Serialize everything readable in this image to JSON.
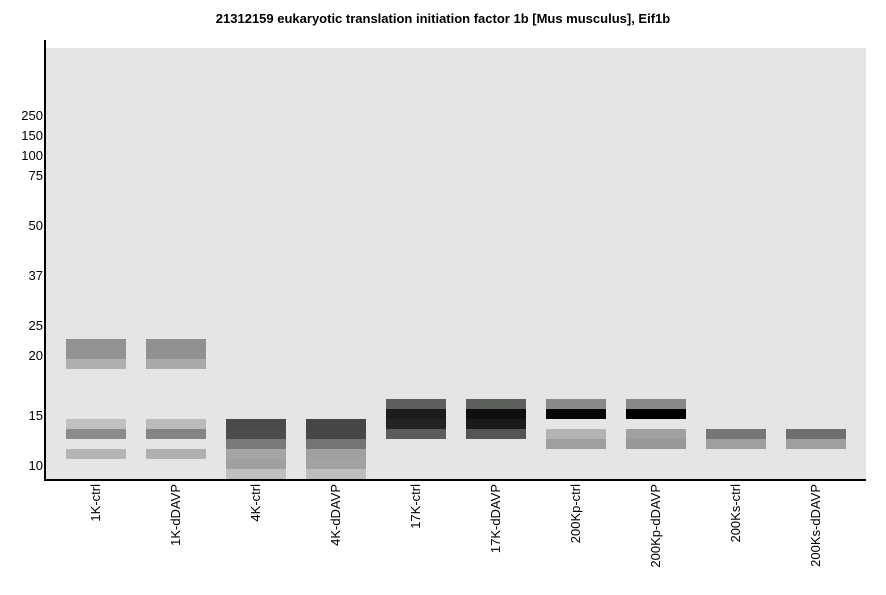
{
  "chart_data": {
    "type": "heatmap",
    "subtype": "western-blot-gel",
    "title": "21312159 eukaryotic translation initiation factor 1b [Mus musculus], Eif1b",
    "ylabel": "",
    "xlabel": "",
    "background_color": "#e4e5e4",
    "y_ticks": [
      {
        "label": "250",
        "kda": 250
      },
      {
        "label": "150",
        "kda": 150
      },
      {
        "label": "100",
        "kda": 100
      },
      {
        "label": "75",
        "kda": 75
      },
      {
        "label": "50",
        "kda": 50
      },
      {
        "label": "37",
        "kda": 37
      },
      {
        "label": "25",
        "kda": 25
      },
      {
        "label": "20",
        "kda": 20
      },
      {
        "label": "15",
        "kda": 15
      },
      {
        "label": "10",
        "kda": 10
      }
    ],
    "lanes": [
      {
        "label": "1K-ctrl",
        "bands": [
          {
            "row": 0,
            "color": "#919291"
          },
          {
            "row": 1,
            "color": "#919291"
          },
          {
            "row": 2,
            "color": "#aeafae"
          },
          {
            "row": 8,
            "color": "#c0c0c0"
          },
          {
            "row": 9,
            "color": "#8a8b8a"
          },
          {
            "row": 11,
            "color": "#b4b4b4"
          }
        ]
      },
      {
        "label": "1K-dDAVP",
        "bands": [
          {
            "row": 0,
            "color": "#909190"
          },
          {
            "row": 1,
            "color": "#909190"
          },
          {
            "row": 2,
            "color": "#a9aaa9"
          },
          {
            "row": 8,
            "color": "#bbbbbb"
          },
          {
            "row": 9,
            "color": "#838483"
          },
          {
            "row": 11,
            "color": "#b0b0b0"
          }
        ]
      },
      {
        "label": "4K-ctrl",
        "bands": [
          {
            "row": 8,
            "color": "#4a4a4a"
          },
          {
            "row": 9,
            "color": "#4c4c4c"
          },
          {
            "row": 10,
            "color": "#7a7a7a"
          },
          {
            "row": 11,
            "color": "#a5a5a5"
          },
          {
            "row": 12,
            "color": "#a0a0a0"
          },
          {
            "row": 13,
            "color": "#c0c0c0"
          }
        ]
      },
      {
        "label": "4K-dDAVP",
        "bands": [
          {
            "row": 8,
            "color": "#454645"
          },
          {
            "row": 9,
            "color": "#454645"
          },
          {
            "row": 10,
            "color": "#737473"
          },
          {
            "row": 11,
            "color": "#a0a0a0"
          },
          {
            "row": 12,
            "color": "#a2a2a2"
          },
          {
            "row": 13,
            "color": "#bebebe"
          }
        ]
      },
      {
        "label": "17K-ctrl",
        "bands": [
          {
            "row": 6,
            "color": "#5d5e5d"
          },
          {
            "row": 7,
            "color": "#1b1c1b"
          },
          {
            "row": 8,
            "color": "#232323"
          },
          {
            "row": 9,
            "color": "#5a5b5a"
          }
        ]
      },
      {
        "label": "17K-dDAVP",
        "bands": [
          {
            "row": 6,
            "color": "#5d5f5d"
          },
          {
            "row": 7,
            "color": "#0e0f0e"
          },
          {
            "row": 8,
            "color": "#1a1a1a"
          },
          {
            "row": 9,
            "color": "#545554"
          }
        ]
      },
      {
        "label": "200Kp-ctrl",
        "bands": [
          {
            "row": 6,
            "color": "#8a8a8a"
          },
          {
            "row": 7,
            "color": "#070707"
          },
          {
            "row": 9,
            "color": "#b4b4b4"
          },
          {
            "row": 10,
            "color": "#a0a0a0"
          }
        ]
      },
      {
        "label": "200Kp-dDAVP",
        "bands": [
          {
            "row": 6,
            "color": "#888888"
          },
          {
            "row": 7,
            "color": "#000000"
          },
          {
            "row": 9,
            "color": "#a0a0a0"
          },
          {
            "row": 10,
            "color": "#999999"
          }
        ]
      },
      {
        "label": "200Ks-ctrl",
        "bands": [
          {
            "row": 9,
            "color": "#757675"
          },
          {
            "row": 10,
            "color": "#a0a0a0"
          }
        ]
      },
      {
        "label": "200Ks-dDAVP",
        "bands": [
          {
            "row": 9,
            "color": "#6f6f6f"
          },
          {
            "row": 10,
            "color": "#a0a0a0"
          }
        ]
      }
    ]
  }
}
